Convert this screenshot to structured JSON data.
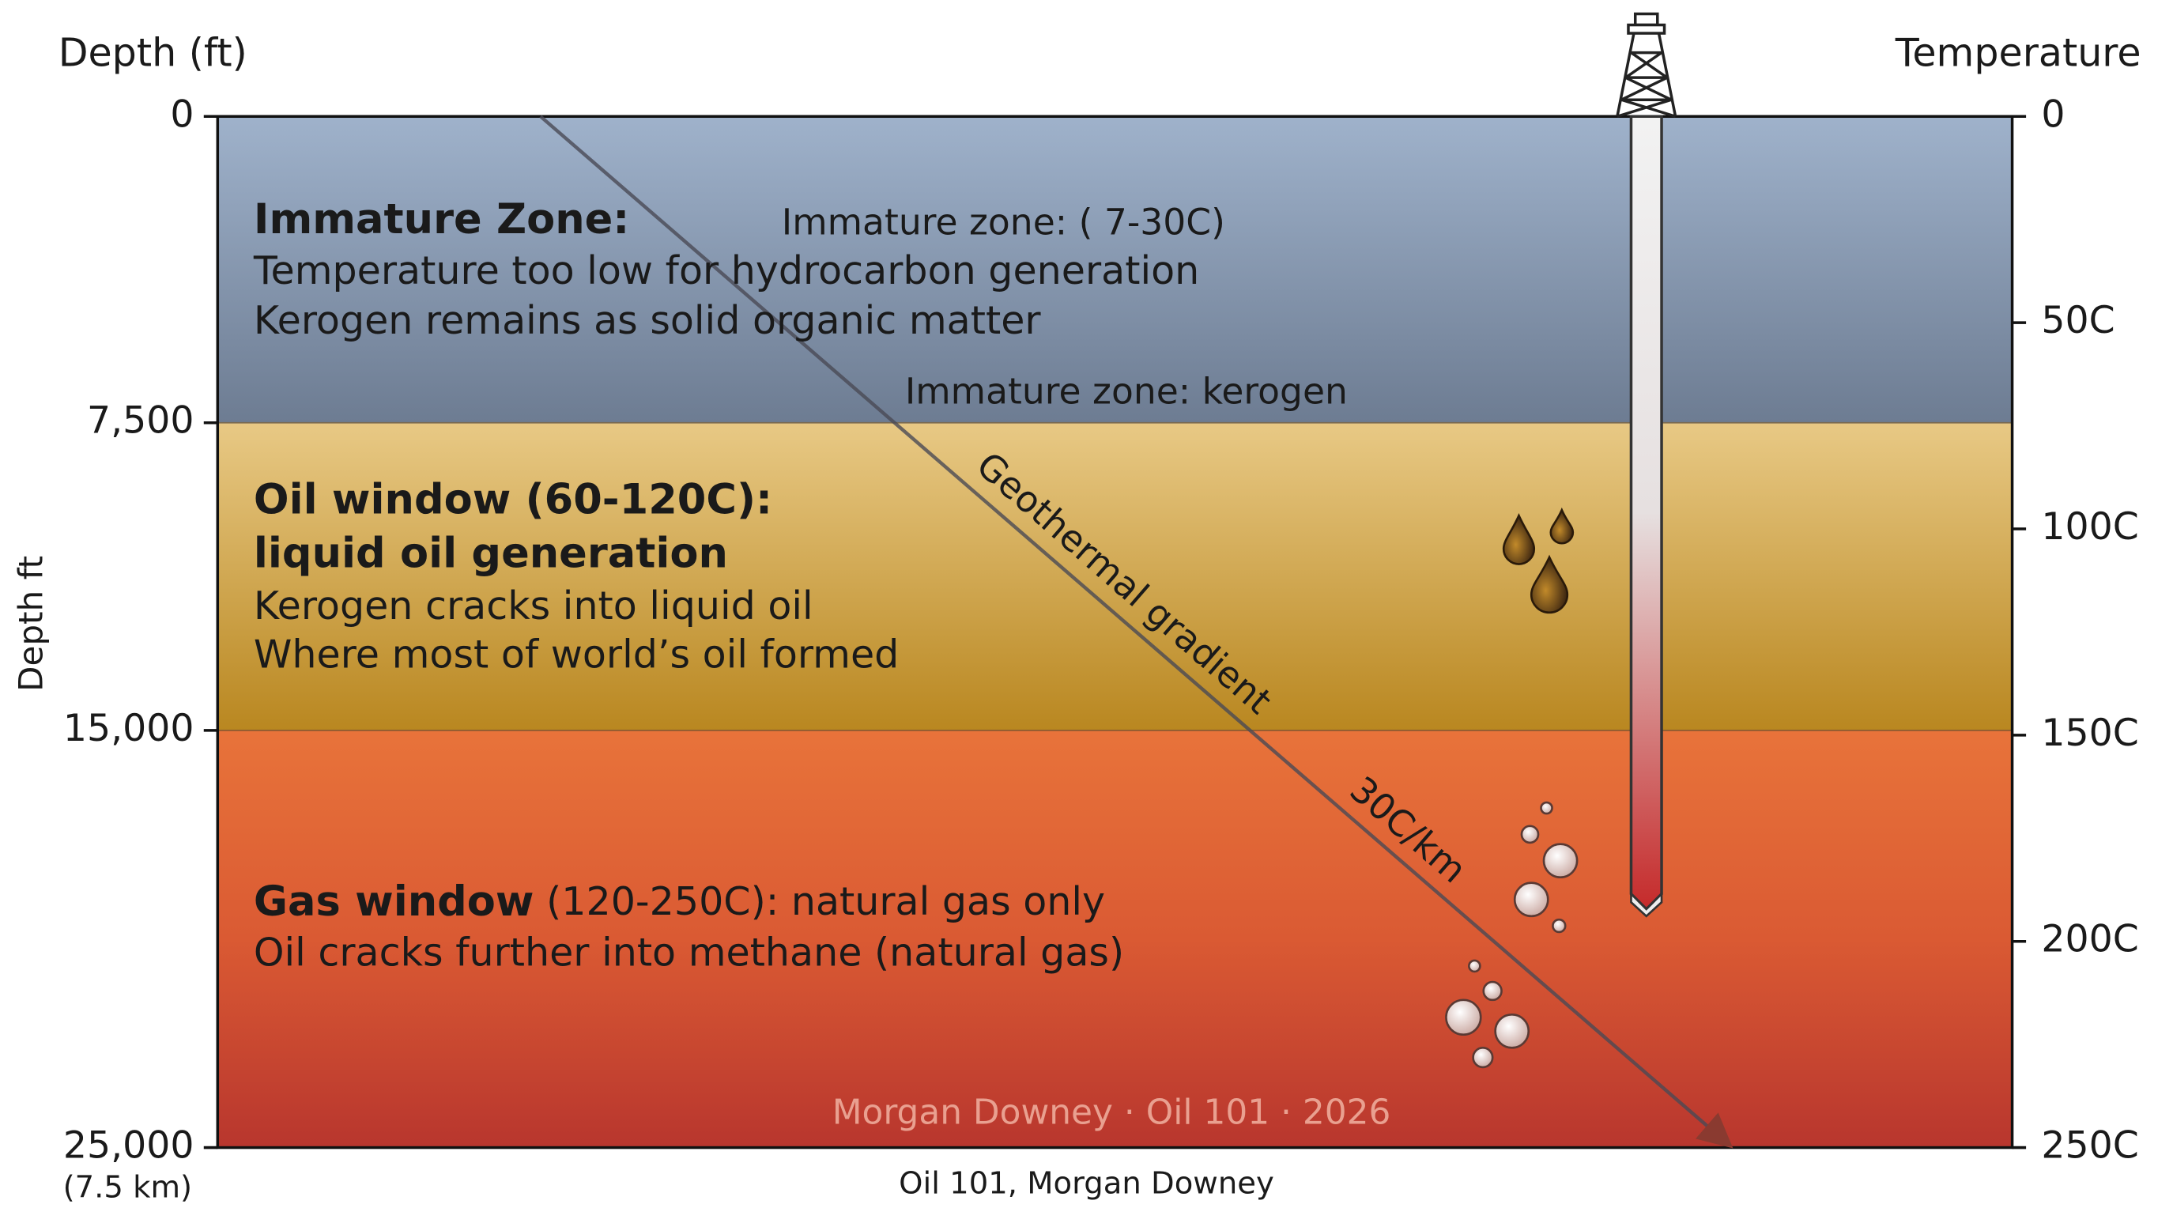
{
  "header": {
    "left_axis_title": "Depth (ft)",
    "right_axis_title": "Temperature",
    "vertical_label": "Depth ft"
  },
  "left_ticks": [
    "0",
    "7,500",
    "15,000",
    "25,000"
  ],
  "left_note": "(7.5 km)",
  "right_ticks": [
    "0",
    "50C",
    "100C",
    "150C",
    "200C",
    "250C"
  ],
  "zones": [
    {
      "title": "Immature Zone:",
      "lines": [
        "Temperature too low for hydrocarbon generation",
        "Kerogen remains as solid organic matter"
      ]
    },
    {
      "title": "Oil window (60-120C):",
      "subtitle": "liquid oil generation",
      "lines": [
        "Kerogen cracks into liquid oil",
        "Where most of world’s oil formed"
      ]
    },
    {
      "title": "Gas window",
      "title_rest": " (120-250C): natural gas only",
      "lines": [
        "Oil cracks further into methane (natural gas)"
      ]
    }
  ],
  "annotations": {
    "immature_temp": "Immature zone: (  7-30C)",
    "immature_kerogen": "Immature zone: kerogen",
    "gradient": "Geothermal gradient",
    "rate": "30C/km"
  },
  "watermark": "Morgan Downey · Oil 101 · 2026",
  "caption": "Oil 101, Morgan Downey"
}
